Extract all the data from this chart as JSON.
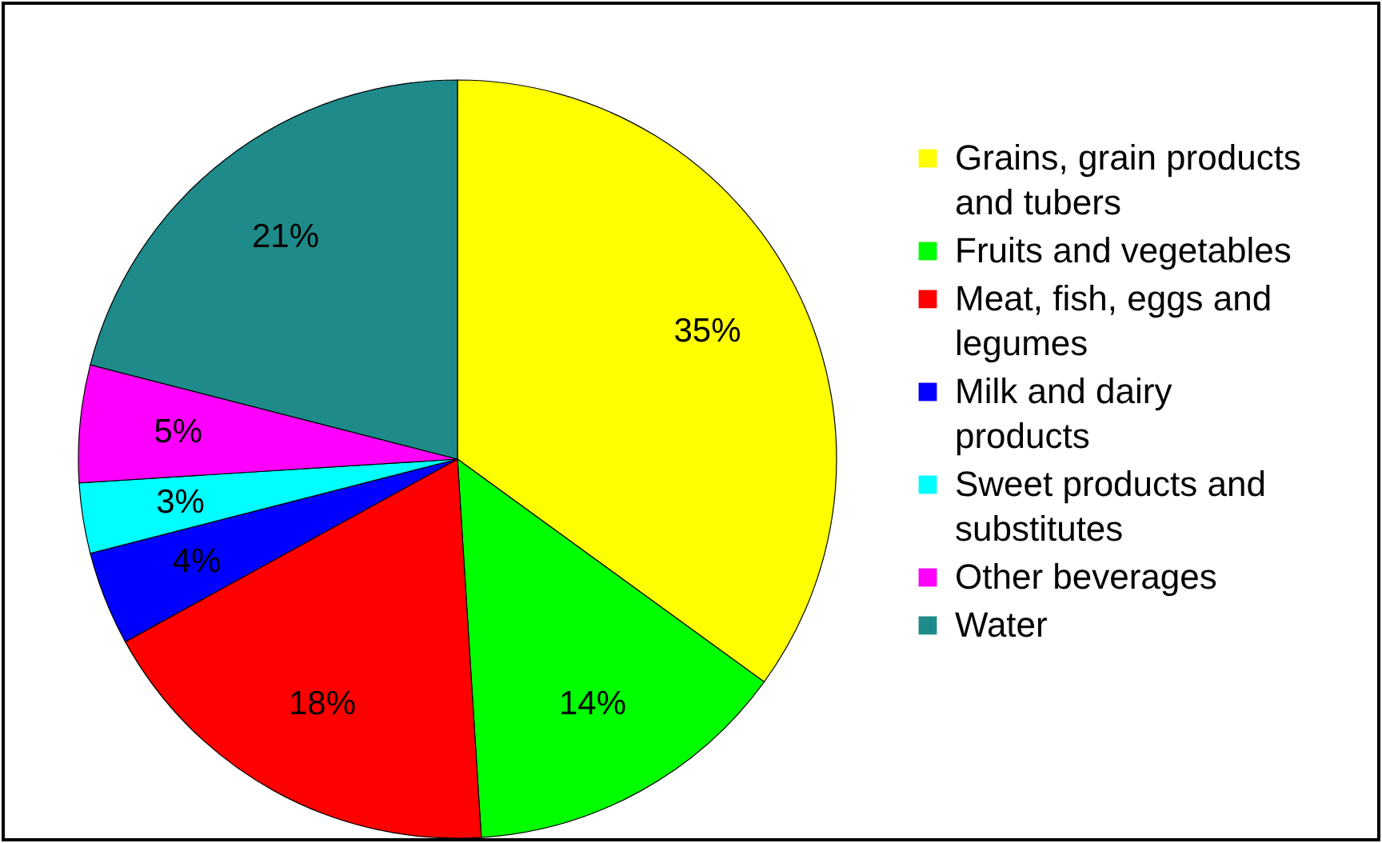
{
  "chart_data": {
    "type": "pie",
    "categories": [
      "Grains, grain products and tubers",
      "Fruits and vegetables",
      "Meat, fish, eggs and legumes",
      "Milk and dairy products",
      "Sweet products and substitutes",
      "Other beverages",
      "Water"
    ],
    "values": [
      35,
      14,
      18,
      4,
      3,
      5,
      21
    ],
    "value_labels": [
      "35%",
      "14%",
      "18%",
      "4%",
      "3%",
      "5%",
      "21%"
    ],
    "colors": [
      "#ffff00",
      "#00ff00",
      "#ff0000",
      "#0000ff",
      "#00ffff",
      "#ff00ff",
      "#1e8a8a"
    ],
    "legend": "right"
  }
}
